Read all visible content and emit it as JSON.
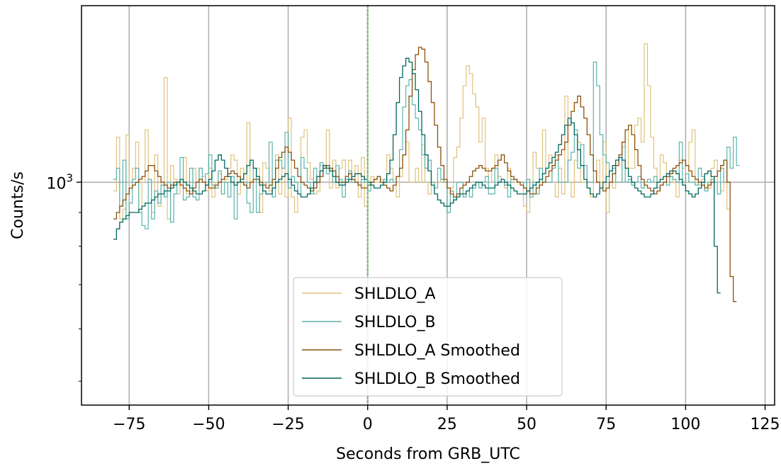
{
  "chart_data": {
    "type": "line",
    "drawstyle": "steps",
    "xlabel": "Seconds from GRB_UTC",
    "ylabel": "Counts/s",
    "xlim": [
      -90,
      128
    ],
    "ylim": [
      460,
      1850
    ],
    "yscale": "log",
    "xticks": [
      -75,
      -50,
      -25,
      0,
      25,
      50,
      75,
      100,
      125
    ],
    "xtick_labels": [
      "−75",
      "−50",
      "−25",
      "0",
      "25",
      "50",
      "75",
      "100",
      "125"
    ],
    "yticks": [
      1000
    ],
    "ytick_labels": [
      {
        "base": "10",
        "exp": "3"
      }
    ],
    "grid": true,
    "legend_position": "lower center",
    "vline_x": 0,
    "bin_width": 1,
    "series": [
      {
        "name": "SHLDLO_A",
        "color": "#dfc27d",
        "width": 1.2,
        "x_start": -80,
        "values": [
          970,
          1170,
          880,
          910,
          1180,
          980,
          1050,
          1150,
          900,
          1000,
          1200,
          1010,
          900,
          1100,
          920,
          1000,
          1440,
          880,
          1060,
          1010,
          960,
          1000,
          1090,
          960,
          970,
          1050,
          1000,
          1050,
          1020,
          970,
          1050,
          950,
          1000,
          1030,
          960,
          1010,
          1050,
          1100,
          1080,
          960,
          1050,
          990,
          1230,
          1000,
          1000,
          1050,
          900,
          1070,
          1050,
          970,
          1010,
          1100,
          960,
          1050,
          950,
          1250,
          950,
          900,
          1000,
          1170,
          1200,
          1070,
          1010,
          960,
          970,
          1060,
          1050,
          1200,
          980,
          1080,
          980,
          1050,
          1080,
          1000,
          1080,
          1010,
          1060,
          950,
          1090,
          920,
          1000,
          1020,
          1000,
          1000,
          1010,
          1000,
          1100,
          1050,
          1000,
          950,
          1020,
          1100,
          1150,
          1000,
          1000,
          1050,
          1000,
          1140,
          1000,
          960,
          1000,
          1000,
          1000,
          1010,
          1000,
          980,
          980,
          1090,
          1130,
          1250,
          1400,
          1500,
          1460,
          1360,
          1300,
          1150,
          1250,
          1050,
          1000,
          1050,
          1100,
          1020,
          1000,
          980,
          1050,
          1010,
          1000,
          1000,
          1000,
          920,
          900,
          1000,
          1110,
          1050,
          1000,
          1200,
          1050,
          1100,
          1000,
          950,
          1050,
          960,
          1350,
          1000,
          950,
          1080,
          1150,
          1000,
          1000,
          980,
          950,
          1000,
          1080,
          1000,
          1150,
          900,
          1000,
          980,
          1000,
          1000,
          1130,
          1200,
          1050,
          1050,
          1220,
          1250,
          1150,
          1620,
          1400,
          1170,
          1050,
          1000,
          1100,
          1070,
          1000,
          1020,
          1000,
          950,
          1080,
          1050,
          1000,
          1150,
          1200,
          1000,
          990,
          1010,
          1000,
          980,
          1050,
          1080,
          1000,
          970,
          1000,
          910
        ]
      },
      {
        "name": "SHLDLO_B",
        "color": "#5ab4ac",
        "width": 1.2,
        "x_start": -80,
        "values": [
          1010,
          1050,
          920,
          1080,
          880,
          930,
          1010,
          1050,
          900,
          860,
          850,
          1010,
          880,
          970,
          930,
          990,
          950,
          1000,
          870,
          960,
          1000,
          1090,
          940,
          950,
          1050,
          950,
          940,
          1050,
          1000,
          1030,
          1100,
          990,
          980,
          1040,
          960,
          1000,
          950,
          1020,
          880,
          1000,
          1000,
          1000,
          930,
          900,
          1050,
          900,
          960,
          990,
          1000,
          1150,
          950,
          1080,
          1080,
          1050,
          1190,
          980,
          1020,
          1000,
          960,
          1090,
          1050,
          1000,
          960,
          1050,
          1000,
          1070,
          1060,
          1030,
          1050,
          1000,
          1060,
          1010,
          950,
          1010,
          1040,
          1000,
          1000,
          990,
          1010,
          1000,
          970,
          1000,
          1010,
          1020,
          1000,
          1010,
          1000,
          1010,
          1000,
          1020,
          1120,
          1300,
          1400,
          1430,
          1310,
          1250,
          1200,
          1100,
          1050,
          1080,
          1000,
          980,
          1050,
          1010,
          1000,
          900,
          970,
          940,
          1000,
          1000,
          950,
          970,
          950,
          980,
          1000,
          980,
          1000,
          1020,
          960,
          960,
          1050,
          1000,
          1000,
          990,
          950,
          1010,
          1010,
          1000,
          1000,
          980,
          1010,
          950,
          1000,
          960,
          1050,
          1000,
          1000,
          1000,
          1050,
          1100,
          1000,
          1000,
          1000,
          1080,
          1110,
          1200,
          1050,
          1140,
          1060,
          1000,
          1000,
          1520,
          1400,
          1180,
          1100,
          1070,
          1000,
          1050,
          1000,
          1000,
          1150,
          1000,
          1010,
          990,
          1000,
          1020,
          980,
          1000,
          1010,
          1000,
          1020,
          980,
          990,
          1000,
          990,
          1020,
          1010,
          1000,
          1150,
          1000,
          1030,
          1000,
          1000,
          990,
          1050,
          1020,
          970,
          1000,
          1010,
          1000,
          960,
          1050,
          1000,
          1130,
          1050,
          1170,
          1060
        ]
      },
      {
        "name": "SHLDLO_A Smoothed",
        "color": "#8c510a",
        "width": 1.3,
        "x_start": -80,
        "values": [
          880,
          900,
          920,
          940,
          960,
          980,
          990,
          1000,
          1010,
          1020,
          1040,
          1060,
          1060,
          1040,
          1020,
          1000,
          990,
          980,
          990,
          1000,
          1000,
          990,
          980,
          970,
          960,
          980,
          1000,
          1010,
          1000,
          990,
          980,
          980,
          990,
          1000,
          1010,
          1020,
          1030,
          1040,
          1030,
          1020,
          1000,
          990,
          980,
          1000,
          1010,
          1010,
          1000,
          990,
          980,
          990,
          1010,
          1050,
          1090,
          1110,
          1130,
          1110,
          1080,
          1050,
          1020,
          1000,
          990,
          980,
          970,
          980,
          1000,
          1020,
          1050,
          1060,
          1050,
          1040,
          1020,
          1000,
          1000,
          1020,
          1030,
          1010,
          1000,
          990,
          980,
          980,
          990,
          1000,
          1010,
          1020,
          1000,
          990,
          980,
          970,
          990,
          1020,
          1050,
          1100,
          1200,
          1350,
          1480,
          1560,
          1600,
          1590,
          1520,
          1420,
          1320,
          1220,
          1130,
          1060,
          1010,
          980,
          960,
          950,
          960,
          980,
          990,
          1000,
          1020,
          1040,
          1050,
          1060,
          1050,
          1040,
          1040,
          1050,
          1060,
          1080,
          1100,
          1070,
          1040,
          1020,
          1010,
          1000,
          990,
          980,
          970,
          960,
          960,
          980,
          990,
          1000,
          1020,
          1040,
          1060,
          1080,
          1100,
          1120,
          1150,
          1220,
          1280,
          1320,
          1350,
          1300,
          1250,
          1180,
          1100,
          1040,
          1000,
          980,
          970,
          980,
          1000,
          1030,
          1060,
          1100,
          1150,
          1200,
          1220,
          1180,
          1120,
          1060,
          1010,
          990,
          980,
          970,
          960,
          970,
          990,
          1000,
          1020,
          1030,
          1050,
          1060,
          1070,
          1080,
          1060,
          1040,
          1020,
          1010,
          1000,
          990,
          980,
          990,
          1000,
          1020,
          1040,
          1060,
          1080,
          1000,
          720,
          660
        ]
      },
      {
        "name": "SHLDLO_B Smoothed",
        "color": "#01665e",
        "width": 1.3,
        "x_start": -80,
        "values": [
          820,
          850,
          870,
          880,
          890,
          900,
          900,
          900,
          910,
          920,
          930,
          930,
          940,
          950,
          960,
          960,
          970,
          970,
          980,
          990,
          1000,
          1010,
          1000,
          990,
          980,
          970,
          960,
          960,
          970,
          990,
          1010,
          1040,
          1080,
          1100,
          1080,
          1050,
          1020,
          1000,
          990,
          1000,
          1010,
          1030,
          1060,
          1080,
          1050,
          1020,
          990,
          970,
          960,
          960,
          980,
          1000,
          1010,
          1020,
          1030,
          1010,
          990,
          970,
          960,
          950,
          950,
          960,
          980,
          1000,
          1020,
          1040,
          1060,
          1050,
          1040,
          1020,
          1000,
          990,
          990,
          1000,
          1010,
          1020,
          1030,
          1030,
          1020,
          1010,
          1000,
          990,
          980,
          980,
          990,
          1000,
          1030,
          1080,
          1180,
          1320,
          1440,
          1500,
          1540,
          1520,
          1460,
          1380,
          1280,
          1180,
          1100,
          1040,
          990,
          960,
          940,
          930,
          920,
          920,
          930,
          940,
          950,
          960,
          960,
          970,
          980,
          990,
          1000,
          1000,
          990,
          980,
          980,
          980,
          990,
          1000,
          1010,
          1000,
          990,
          980,
          970,
          960,
          960,
          960,
          970,
          980,
          990,
          1000,
          1010,
          1030,
          1050,
          1070,
          1090,
          1110,
          1140,
          1180,
          1220,
          1250,
          1230,
          1180,
          1120,
          1060,
          1010,
          980,
          960,
          950,
          960,
          980,
          1000,
          1020,
          1040,
          1060,
          1080,
          1090,
          1080,
          1050,
          1020,
          1000,
          980,
          970,
          960,
          950,
          950,
          960,
          980,
          1000,
          1010,
          1020,
          1030,
          1040,
          1040,
          1030,
          1010,
          990,
          970,
          960,
          950,
          960,
          980,
          1000,
          1030,
          1040,
          1020,
          800,
          680
        ]
      }
    ]
  }
}
